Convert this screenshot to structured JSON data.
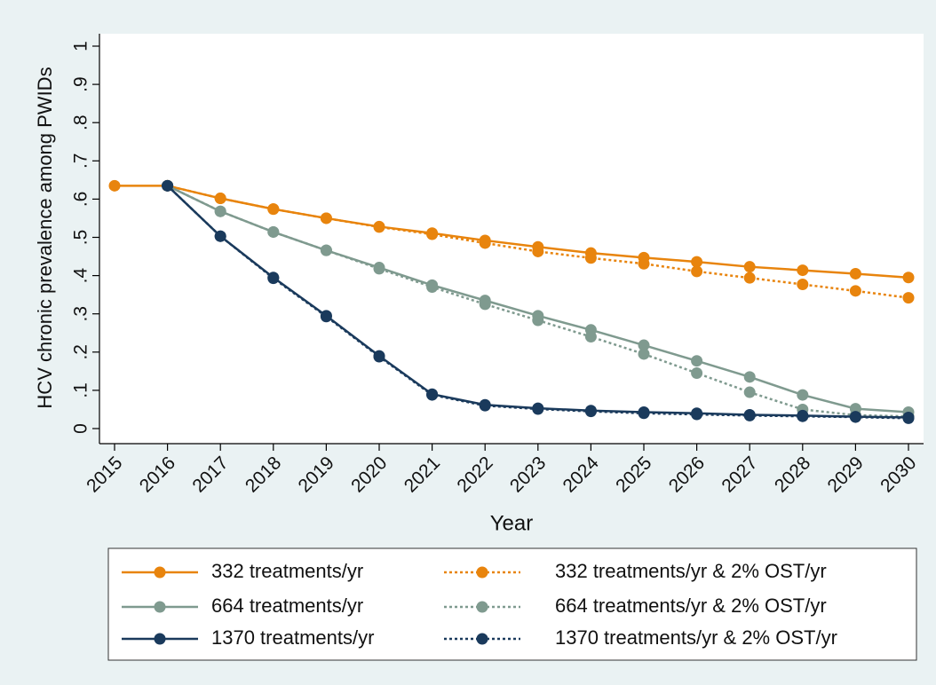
{
  "chart_data": {
    "type": "line",
    "x_label": "Year",
    "y_label": "HCV chronic prevalence among PWIDs",
    "categories": [
      "2015",
      "2016",
      "2017",
      "2018",
      "2019",
      "2020",
      "2021",
      "2022",
      "2023",
      "2024",
      "2025",
      "2026",
      "2027",
      "2028",
      "2029",
      "2030"
    ],
    "ylim": [
      0,
      1
    ],
    "yticks": [
      0,
      {
        "value": 0.1,
        "label": ".1"
      },
      {
        "value": 0.2,
        "label": ".2"
      },
      {
        "value": 0.3,
        "label": ".3"
      },
      {
        "value": 0.4,
        "label": ".4"
      },
      {
        "value": 0.5,
        "label": ".5"
      },
      {
        "value": 0.6,
        "label": ".6"
      },
      {
        "value": 0.7,
        "label": ".7"
      },
      {
        "value": 0.8,
        "label": ".8"
      },
      {
        "value": 0.9,
        "label": ".9"
      },
      1
    ],
    "series": [
      {
        "name": "332 treatments/yr",
        "color": "#e8840d",
        "line_style": "solid",
        "values": [
          0.635,
          0.635,
          0.602,
          0.574,
          0.55,
          0.528,
          0.511,
          0.492,
          0.475,
          0.459,
          0.447,
          0.436,
          0.423,
          0.414,
          0.405,
          0.395
        ]
      },
      {
        "name": "332 treatments/yr & 2% OST/yr",
        "color": "#e8840d",
        "line_style": "dotted",
        "values": [
          null,
          0.635,
          0.602,
          0.574,
          0.55,
          0.527,
          0.508,
          0.485,
          0.463,
          0.446,
          0.431,
          0.411,
          0.394,
          0.377,
          0.36,
          0.342
        ]
      },
      {
        "name": "664 treatments/yr",
        "color": "#7f9a8f",
        "line_style": "solid",
        "values": [
          null,
          0.635,
          0.568,
          0.514,
          0.466,
          0.421,
          0.375,
          0.335,
          0.295,
          0.258,
          0.218,
          0.177,
          0.135,
          0.088,
          0.052,
          0.043
        ]
      },
      {
        "name": "664 treatments/yr & 2% OST/yr",
        "color": "#7f9a8f",
        "line_style": "dotted",
        "values": [
          null,
          0.635,
          0.568,
          0.514,
          0.466,
          0.418,
          0.37,
          0.325,
          0.283,
          0.24,
          0.195,
          0.145,
          0.095,
          0.05,
          0.035,
          0.032
        ]
      },
      {
        "name": "1370 treatments/yr",
        "color": "#1a3a5c",
        "line_style": "solid",
        "values": [
          null,
          0.635,
          0.503,
          0.395,
          0.295,
          0.19,
          0.09,
          0.062,
          0.053,
          0.047,
          0.043,
          0.04,
          0.036,
          0.034,
          0.031,
          0.029
        ]
      },
      {
        "name": "1370 treatments/yr & 2% OST/yr",
        "color": "#1a3a5c",
        "line_style": "dotted",
        "values": [
          null,
          0.635,
          0.503,
          0.393,
          0.293,
          0.188,
          0.088,
          0.06,
          0.051,
          0.045,
          0.04,
          0.037,
          0.034,
          0.032,
          0.03,
          0.027
        ]
      }
    ]
  }
}
